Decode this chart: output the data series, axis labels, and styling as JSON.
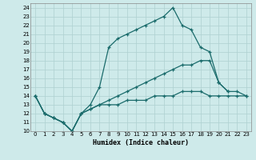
{
  "title": "",
  "xlabel": "Humidex (Indice chaleur)",
  "xlim": [
    -0.5,
    23.5
  ],
  "ylim": [
    10,
    24.5
  ],
  "yticks": [
    10,
    11,
    12,
    13,
    14,
    15,
    16,
    17,
    18,
    19,
    20,
    21,
    22,
    23,
    24
  ],
  "xticks": [
    0,
    1,
    2,
    3,
    4,
    5,
    6,
    7,
    8,
    9,
    10,
    11,
    12,
    13,
    14,
    15,
    16,
    17,
    18,
    19,
    20,
    21,
    22,
    23
  ],
  "bg_color": "#ceeaea",
  "grid_color": "#aed0d0",
  "line_color": "#1a6b6b",
  "line1_x": [
    0,
    1,
    2,
    3,
    4,
    5,
    6,
    7,
    8,
    9,
    10,
    11,
    12,
    13,
    14,
    15,
    16,
    17,
    18,
    19,
    20,
    21
  ],
  "line1_y": [
    14,
    12,
    11.5,
    11,
    10,
    12,
    13,
    15,
    19.5,
    20.5,
    21,
    21.5,
    22,
    22.5,
    23,
    24,
    22,
    21.5,
    19.5,
    19,
    15.5,
    14.5
  ],
  "line2_x": [
    0,
    1,
    2,
    3,
    4,
    5,
    6,
    7,
    8,
    9,
    10,
    11,
    12,
    13,
    14,
    15,
    16,
    17,
    18,
    19,
    20,
    21,
    22,
    23
  ],
  "line2_y": [
    14,
    12,
    11.5,
    11,
    10,
    12,
    12.5,
    13,
    13.5,
    14,
    14.5,
    15,
    15.5,
    16,
    16.5,
    17,
    17.5,
    17.5,
    18,
    18,
    15.5,
    14.5,
    14.5,
    14
  ],
  "line3_x": [
    0,
    1,
    2,
    3,
    4,
    5,
    6,
    7,
    8,
    9,
    10,
    11,
    12,
    13,
    14,
    15,
    16,
    17,
    18,
    19,
    20,
    21,
    22,
    23
  ],
  "line3_y": [
    14,
    12,
    11.5,
    11,
    10,
    12,
    12.5,
    13,
    13,
    13,
    13.5,
    13.5,
    13.5,
    14,
    14,
    14,
    14.5,
    14.5,
    14.5,
    14,
    14,
    14,
    14,
    14
  ]
}
